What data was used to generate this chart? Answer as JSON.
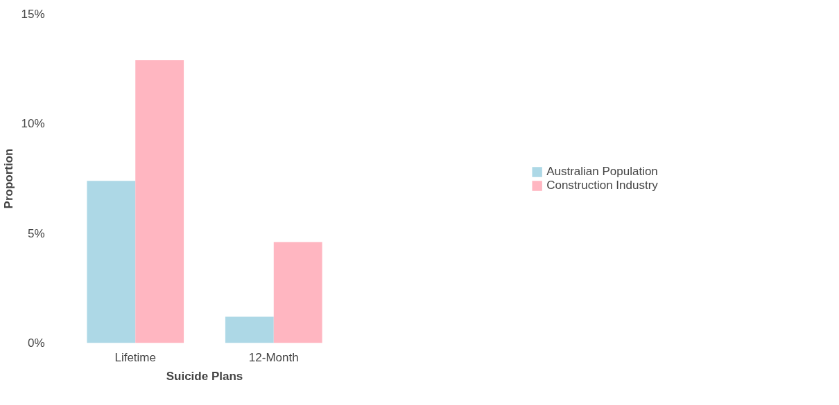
{
  "chart_data": {
    "type": "bar",
    "xlabel": "Suicide Plans",
    "ylabel": "Proportion",
    "categories": [
      "Lifetime",
      "12-Month"
    ],
    "series": [
      {
        "name": "Australian Population",
        "color": "#add8e6",
        "values": [
          7.4,
          1.2
        ]
      },
      {
        "name": "Construction Industry",
        "color": "#ffb6c1",
        "values": [
          12.9,
          4.6
        ]
      }
    ],
    "ylim": [
      0,
      15
    ],
    "yticks": [
      {
        "value": 0,
        "label": "0%"
      },
      {
        "value": 5,
        "label": "5%"
      },
      {
        "value": 10,
        "label": "10%"
      },
      {
        "value": 15,
        "label": "15%"
      }
    ],
    "grid": false,
    "legend": "right"
  }
}
